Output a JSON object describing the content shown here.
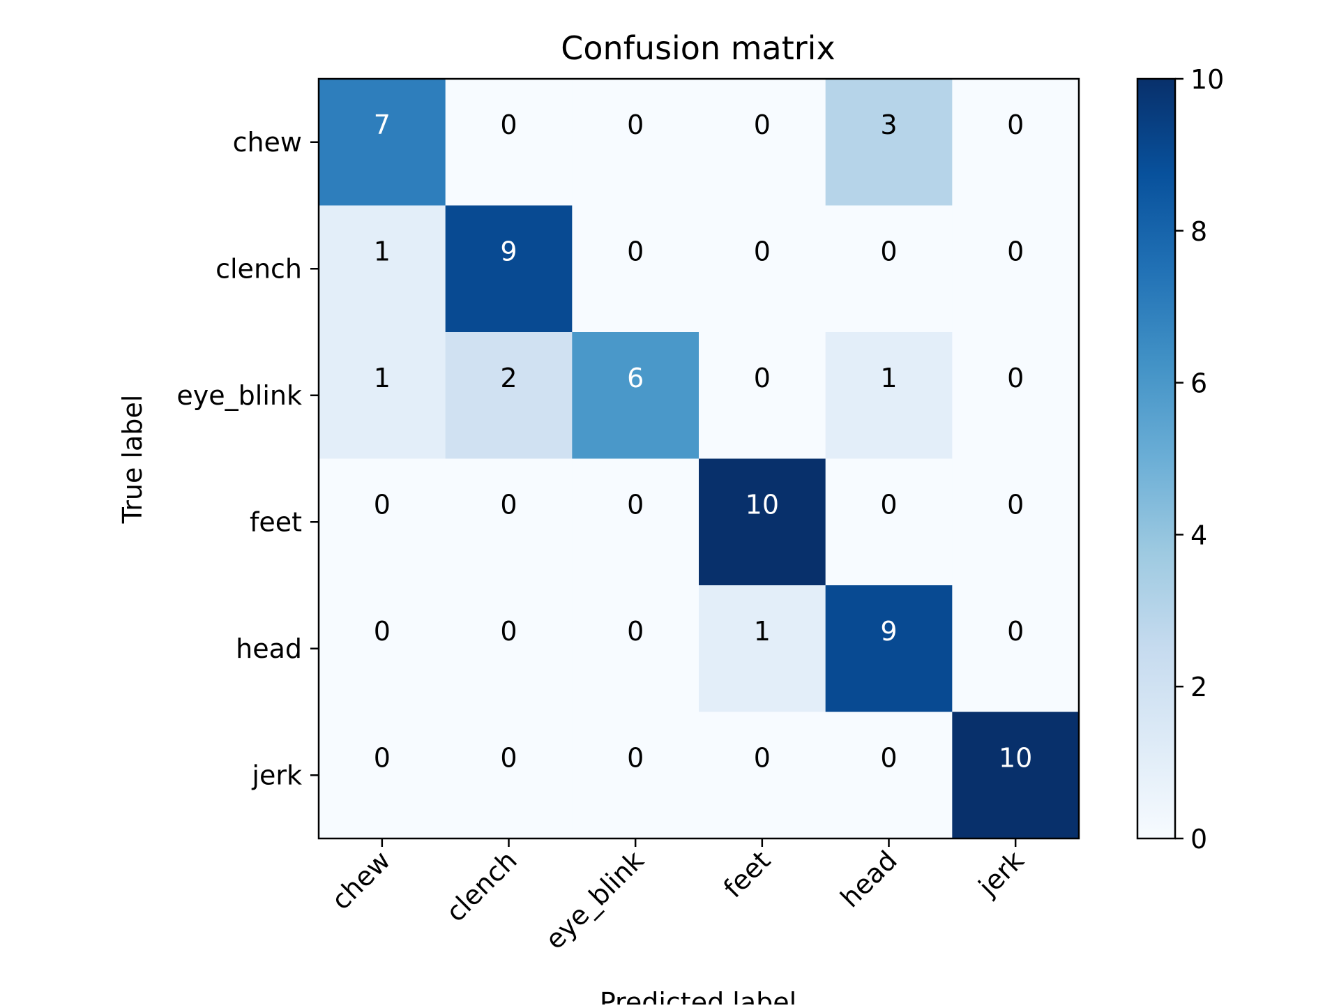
{
  "chart_data": {
    "type": "heatmap",
    "title": "Confusion matrix",
    "xlabel": "Predicted label",
    "ylabel": "True label",
    "x_categories": [
      "chew",
      "clench",
      "eye_blink",
      "feet",
      "head",
      "jerk"
    ],
    "y_categories": [
      "chew",
      "clench",
      "eye_blink",
      "feet",
      "head",
      "jerk"
    ],
    "matrix": [
      [
        7,
        0,
        0,
        0,
        3,
        0
      ],
      [
        1,
        9,
        0,
        0,
        0,
        0
      ],
      [
        1,
        2,
        6,
        0,
        1,
        0
      ],
      [
        0,
        0,
        0,
        10,
        0,
        0
      ],
      [
        0,
        0,
        0,
        1,
        9,
        0
      ],
      [
        0,
        0,
        0,
        0,
        0,
        10
      ]
    ],
    "colormap": "Blues",
    "colorbar": {
      "min": 0,
      "max": 10,
      "ticks": [
        0,
        2,
        4,
        6,
        8,
        10
      ]
    },
    "colors": {
      "cmap_stops": [
        "#f7fbff",
        "#deebf7",
        "#c6dbef",
        "#9ecae1",
        "#6baed6",
        "#4292c6",
        "#2171b5",
        "#08519c",
        "#08306b"
      ],
      "text_dark": "#000000",
      "text_light": "#ffffff"
    }
  }
}
